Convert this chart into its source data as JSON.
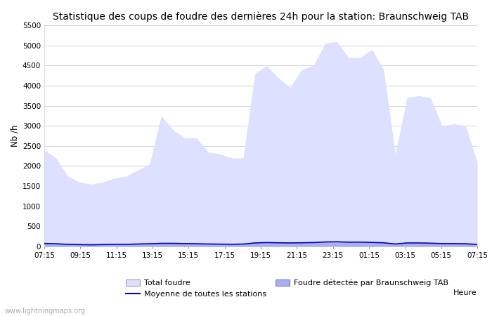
{
  "title": "Statistique des coups de foudre des dernières 24h pour la station: Braunschweig TAB",
  "ylabel": "Nb /h",
  "xlabel": "Heure",
  "watermark": "www.lightningmaps.org",
  "ylim": [
    0,
    5500
  ],
  "yticks": [
    0,
    500,
    1000,
    1500,
    2000,
    2500,
    3000,
    3500,
    4000,
    4500,
    5000,
    5500
  ],
  "xtick_labels": [
    "07:15",
    "09:15",
    "11:15",
    "13:15",
    "15:15",
    "17:15",
    "19:15",
    "21:15",
    "23:15",
    "01:15",
    "03:15",
    "05:15",
    "07:15"
  ],
  "total_foudre_color": "#dde0ff",
  "detected_color": "#aab0ee",
  "moyenne_color": "#0000cc",
  "background_color": "#ffffff",
  "grid_color": "#cccccc",
  "title_fontsize": 10,
  "legend_fontsize": 8,
  "total_foudre": [
    2400,
    2200,
    1750,
    1600,
    1550,
    1600,
    1700,
    1750,
    1900,
    2050,
    3250,
    2900,
    2700,
    2700,
    2350,
    2300,
    2200,
    2200,
    4300,
    4500,
    4200,
    3950,
    4400,
    4500,
    5050,
    5100,
    4700,
    4700,
    4900,
    4400,
    2300,
    3700,
    3750,
    3700,
    3000,
    3050,
    3000,
    2100
  ],
  "detected_foudre": [
    80,
    70,
    55,
    50,
    45,
    50,
    55,
    55,
    65,
    70,
    80,
    80,
    75,
    70,
    65,
    60,
    58,
    62,
    90,
    100,
    95,
    90,
    95,
    100,
    115,
    120,
    110,
    110,
    105,
    95,
    65,
    90,
    90,
    85,
    75,
    75,
    70,
    55
  ],
  "moyenne": [
    75,
    68,
    52,
    48,
    42,
    48,
    52,
    52,
    62,
    68,
    78,
    78,
    72,
    68,
    62,
    58,
    55,
    60,
    88,
    98,
    92,
    88,
    92,
    98,
    112,
    118,
    108,
    108,
    102,
    92,
    62,
    88,
    88,
    82,
    72,
    72,
    68,
    52
  ]
}
